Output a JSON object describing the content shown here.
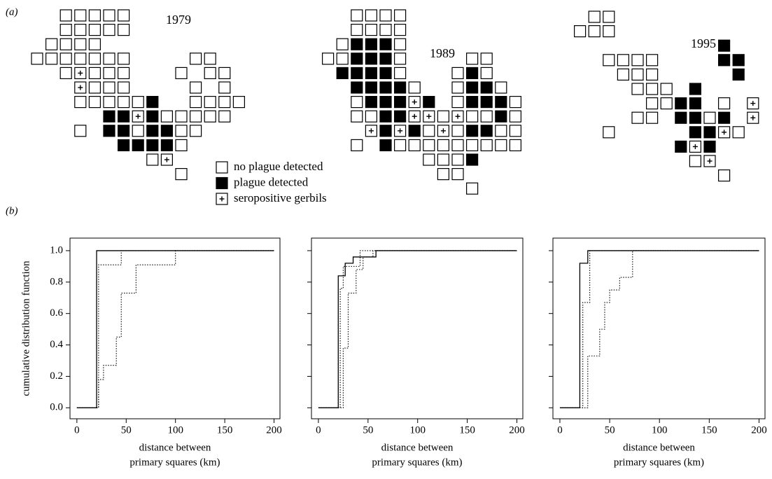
{
  "panel_a": {
    "label": "(a)",
    "maps": [
      {
        "year": "1979"
      },
      {
        "year": "1989"
      },
      {
        "year": "1995"
      }
    ],
    "legend": [
      "no plague detected",
      "plague detected",
      "seropositive gerbils"
    ]
  },
  "panel_b": {
    "label": "(b)"
  },
  "chart_data": [
    {
      "type": "step",
      "xlim": [
        -7,
        206
      ],
      "ylim": [
        -0.07,
        1.08
      ],
      "xticks": [
        0,
        50,
        100,
        150,
        200
      ],
      "yticks": [
        {
          "value": 0,
          "label": "0.0"
        },
        {
          "value": 0.2,
          "label": "0.2"
        },
        {
          "value": 0.4,
          "label": "0.4"
        },
        {
          "value": 0.6,
          "label": "0.6"
        },
        {
          "value": 0.8,
          "label": "0.8"
        },
        {
          "value": 1,
          "label": "1.0"
        }
      ],
      "ylabel": "cumulative distribution function",
      "xlabel": [
        "distance between",
        "primary squares (km)"
      ],
      "series": [
        {
          "style": "solid",
          "color": "#000000",
          "x": [
            0,
            20,
            200
          ],
          "values": [
            0,
            1,
            1
          ]
        },
        {
          "style": "dotted",
          "color": "#000000",
          "x": [
            0,
            22,
            45,
            200
          ],
          "values": [
            0,
            0.91,
            1,
            1
          ]
        },
        {
          "style": "dotted",
          "color": "#000000",
          "x": [
            0,
            22,
            27,
            40,
            45,
            60,
            100,
            200
          ],
          "values": [
            0,
            0.18,
            0.27,
            0.45,
            0.73,
            0.91,
            1,
            1
          ]
        }
      ]
    },
    {
      "type": "step",
      "xlim": [
        -7,
        206
      ],
      "ylim": [
        -0.07,
        1.08
      ],
      "xticks": [
        0,
        50,
        100,
        150,
        200
      ],
      "yticks": [
        0,
        0.2,
        0.4,
        0.6,
        0.8,
        1
      ],
      "xlabel": [
        "distance between",
        "primary squares (km)"
      ],
      "series": [
        {
          "style": "solid",
          "color": "#000000",
          "x": [
            0,
            20,
            27,
            35,
            58,
            200
          ],
          "values": [
            0,
            0.84,
            0.92,
            0.96,
            1,
            1
          ]
        },
        {
          "style": "dotted",
          "color": "#000000",
          "x": [
            0,
            22,
            25,
            42,
            200
          ],
          "values": [
            0,
            0.76,
            0.9,
            1,
            1
          ]
        },
        {
          "style": "dotted",
          "color": "#000000",
          "x": [
            0,
            25,
            30,
            38,
            45,
            55,
            200
          ],
          "values": [
            0,
            0.38,
            0.73,
            0.88,
            0.96,
            1,
            1
          ]
        }
      ]
    },
    {
      "type": "step",
      "xlim": [
        -7,
        206
      ],
      "ylim": [
        -0.07,
        1.08
      ],
      "xticks": [
        0,
        50,
        100,
        150,
        200
      ],
      "yticks": [
        0,
        0.2,
        0.4,
        0.6,
        0.8,
        1
      ],
      "xlabel": [
        "distance between",
        "primary squares (km)"
      ],
      "series": [
        {
          "style": "solid",
          "color": "#000000",
          "x": [
            0,
            20,
            28,
            200
          ],
          "values": [
            0,
            0.92,
            1,
            1
          ]
        },
        {
          "style": "dotted",
          "color": "#000000",
          "x": [
            0,
            23,
            30,
            200
          ],
          "values": [
            0,
            0.67,
            1,
            1
          ]
        },
        {
          "style": "dotted",
          "color": "#000000",
          "x": [
            0,
            28,
            40,
            45,
            50,
            60,
            73,
            200
          ],
          "values": [
            0,
            0.33,
            0.5,
            0.67,
            0.75,
            0.83,
            1,
            1
          ]
        }
      ]
    }
  ]
}
